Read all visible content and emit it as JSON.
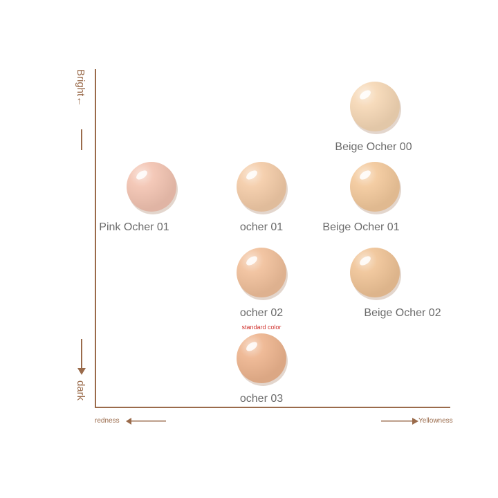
{
  "chart_data": {
    "type": "scatter",
    "title": "",
    "xlabel": "redness ↔ Yellowness",
    "ylabel": "Bright ↔ dark",
    "axes": {
      "y_top_label": "Bright←",
      "y_bottom_label": "dark",
      "x_left_label": "redness",
      "x_right_label": "Yellowness"
    },
    "points": [
      {
        "name": "Beige Ocher 00",
        "x": 3,
        "y": 4,
        "color": "#f6d8b6"
      },
      {
        "name": "Pink Ocher 01",
        "x": 1,
        "y": 3,
        "color": "#f3c4b2"
      },
      {
        "name": "ocher 01",
        "x": 2,
        "y": 3,
        "color": "#f4cca8"
      },
      {
        "name": "Beige Ocher 01",
        "x": 3,
        "y": 3,
        "color": "#f3c99c"
      },
      {
        "name": "ocher 02",
        "x": 2,
        "y": 2,
        "color": "#f1c09b",
        "note": "standard color"
      },
      {
        "name": "Beige Ocher 02",
        "x": 3,
        "y": 2,
        "color": "#f0c497"
      },
      {
        "name": "ocher 03",
        "x": 2,
        "y": 1,
        "color": "#eeb58f"
      }
    ]
  }
}
